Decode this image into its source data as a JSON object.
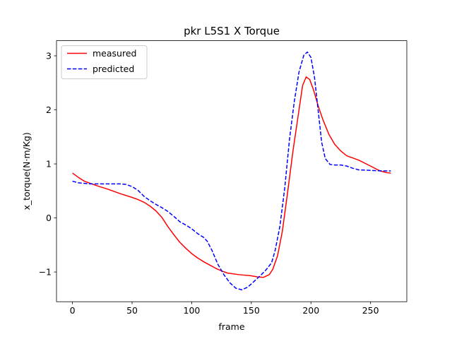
{
  "chart_data": {
    "type": "line",
    "title": "pkr L5S1 X Torque",
    "xlabel": "frame",
    "ylabel": "x_torque(N·m/Kg)",
    "xlim": [
      -13.4,
      280.4
    ],
    "ylim": [
      -1.55,
      3.28
    ],
    "xticks": [
      0,
      50,
      100,
      150,
      200,
      250
    ],
    "yticks": [
      -1,
      0,
      1,
      2,
      3
    ],
    "xtick_labels": [
      "0",
      "50",
      "100",
      "150",
      "200",
      "250"
    ],
    "ytick_labels": [
      "−1",
      "0",
      "1",
      "2",
      "3"
    ],
    "grid": false,
    "legend_position": "upper left",
    "series": [
      {
        "name": "measured",
        "color": "#ff0000",
        "style": "solid",
        "points": [
          [
            0,
            0.83
          ],
          [
            5,
            0.75
          ],
          [
            10,
            0.68
          ],
          [
            20,
            0.6
          ],
          [
            30,
            0.53
          ],
          [
            40,
            0.45
          ],
          [
            50,
            0.38
          ],
          [
            55,
            0.34
          ],
          [
            60,
            0.29
          ],
          [
            65,
            0.22
          ],
          [
            70,
            0.13
          ],
          [
            75,
            0.01
          ],
          [
            80,
            -0.16
          ],
          [
            85,
            -0.31
          ],
          [
            90,
            -0.45
          ],
          [
            95,
            -0.56
          ],
          [
            100,
            -0.66
          ],
          [
            105,
            -0.74
          ],
          [
            110,
            -0.81
          ],
          [
            115,
            -0.87
          ],
          [
            120,
            -0.93
          ],
          [
            125,
            -0.98
          ],
          [
            130,
            -1.02
          ],
          [
            140,
            -1.05
          ],
          [
            150,
            -1.07
          ],
          [
            155,
            -1.09
          ],
          [
            160,
            -1.1
          ],
          [
            165,
            -1.05
          ],
          [
            168,
            -0.95
          ],
          [
            172,
            -0.7
          ],
          [
            176,
            -0.25
          ],
          [
            180,
            0.4
          ],
          [
            185,
            1.25
          ],
          [
            190,
            2.0
          ],
          [
            193,
            2.45
          ],
          [
            196,
            2.61
          ],
          [
            199,
            2.56
          ],
          [
            202,
            2.38
          ],
          [
            206,
            2.08
          ],
          [
            210,
            1.82
          ],
          [
            215,
            1.55
          ],
          [
            220,
            1.36
          ],
          [
            225,
            1.24
          ],
          [
            230,
            1.15
          ],
          [
            240,
            1.07
          ],
          [
            250,
            0.96
          ],
          [
            258,
            0.87
          ],
          [
            263,
            0.84
          ],
          [
            267,
            0.83
          ]
        ]
      },
      {
        "name": "predicted",
        "color": "#0000ff",
        "style": "dashed",
        "points": [
          [
            0,
            0.68
          ],
          [
            5,
            0.65
          ],
          [
            10,
            0.64
          ],
          [
            15,
            0.63
          ],
          [
            20,
            0.63
          ],
          [
            30,
            0.63
          ],
          [
            40,
            0.63
          ],
          [
            45,
            0.62
          ],
          [
            50,
            0.58
          ],
          [
            55,
            0.51
          ],
          [
            60,
            0.4
          ],
          [
            65,
            0.32
          ],
          [
            70,
            0.25
          ],
          [
            75,
            0.19
          ],
          [
            80,
            0.12
          ],
          [
            85,
            0.03
          ],
          [
            90,
            -0.07
          ],
          [
            95,
            -0.13
          ],
          [
            100,
            -0.2
          ],
          [
            105,
            -0.29
          ],
          [
            110,
            -0.36
          ],
          [
            113,
            -0.43
          ],
          [
            117,
            -0.6
          ],
          [
            122,
            -0.86
          ],
          [
            127,
            -1.05
          ],
          [
            132,
            -1.2
          ],
          [
            137,
            -1.3
          ],
          [
            142,
            -1.33
          ],
          [
            147,
            -1.28
          ],
          [
            152,
            -1.18
          ],
          [
            157,
            -1.08
          ],
          [
            162,
            -0.97
          ],
          [
            167,
            -0.83
          ],
          [
            170,
            -0.6
          ],
          [
            174,
            -0.15
          ],
          [
            178,
            0.55
          ],
          [
            182,
            1.45
          ],
          [
            186,
            2.15
          ],
          [
            190,
            2.7
          ],
          [
            194,
            3.01
          ],
          [
            197,
            3.07
          ],
          [
            200,
            2.97
          ],
          [
            203,
            2.6
          ],
          [
            206,
            2.0
          ],
          [
            209,
            1.4
          ],
          [
            212,
            1.1
          ],
          [
            216,
            0.99
          ],
          [
            220,
            0.98
          ],
          [
            225,
            0.98
          ],
          [
            230,
            0.96
          ],
          [
            235,
            0.92
          ],
          [
            240,
            0.89
          ],
          [
            250,
            0.88
          ],
          [
            260,
            0.87
          ],
          [
            267,
            0.87
          ]
        ]
      }
    ]
  }
}
